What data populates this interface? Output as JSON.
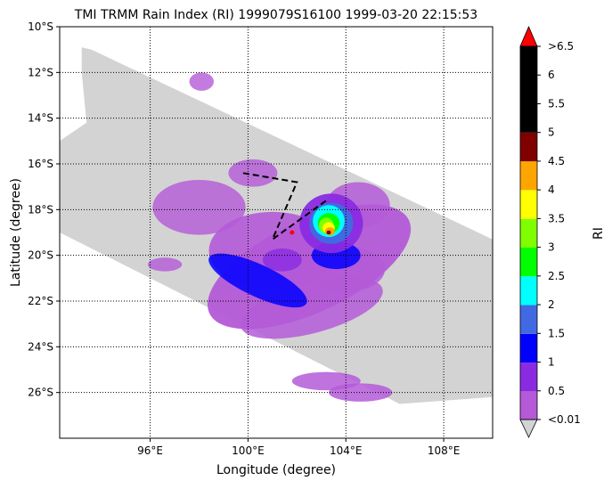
{
  "chart_data": {
    "type": "heatmap",
    "title": "TMI TRMM Rain Index (RI) 1999079S16100 1999-03-20 22:15:53",
    "xlabel": "Longitude (degree)",
    "ylabel": "Latitude (degree)",
    "xlim": [
      92.3,
      110.0
    ],
    "ylim": [
      -28.0,
      -10.0
    ],
    "x_ticks": [
      {
        "value": 96,
        "label": "96°E"
      },
      {
        "value": 100,
        "label": "100°E"
      },
      {
        "value": 104,
        "label": "104°E"
      },
      {
        "value": 108,
        "label": "108°E"
      }
    ],
    "y_ticks": [
      {
        "value": -10,
        "label": "10°S"
      },
      {
        "value": -12,
        "label": "12°S"
      },
      {
        "value": -14,
        "label": "14°S"
      },
      {
        "value": -16,
        "label": "16°S"
      },
      {
        "value": -18,
        "label": "18°S"
      },
      {
        "value": -20,
        "label": "20°S"
      },
      {
        "value": -22,
        "label": "22°S"
      },
      {
        "value": -24,
        "label": "24°S"
      },
      {
        "value": -26,
        "label": "26°S"
      }
    ],
    "grid": true,
    "swath_color": "#d3d3d3",
    "colorbar": {
      "label": "RI",
      "tick_labels": [
        ">6.5",
        "6",
        "5.5",
        "5",
        "4.5",
        "4",
        "3.5",
        "3",
        "2.5",
        "2",
        "1.5",
        "1",
        "0.5",
        "<0.01"
      ],
      "bins": [
        {
          "lo": 0.01,
          "hi": 0.5,
          "color": "#b45ad8"
        },
        {
          "lo": 0.5,
          "hi": 1.0,
          "color": "#8a2be2"
        },
        {
          "lo": 1.0,
          "hi": 1.5,
          "color": "#0000ff"
        },
        {
          "lo": 1.5,
          "hi": 2.0,
          "color": "#4169e1"
        },
        {
          "lo": 2.0,
          "hi": 2.5,
          "color": "#00ffff"
        },
        {
          "lo": 2.5,
          "hi": 3.0,
          "color": "#00ff00"
        },
        {
          "lo": 3.0,
          "hi": 3.5,
          "color": "#7fff00"
        },
        {
          "lo": 3.5,
          "hi": 4.0,
          "color": "#ffff00"
        },
        {
          "lo": 4.0,
          "hi": 4.5,
          "color": "#ffa500"
        },
        {
          "lo": 4.5,
          "hi": 5.0,
          "color": "#800000"
        },
        {
          "lo": 5.0,
          "hi": 6.5,
          "color": "#000000"
        }
      ],
      "over_color": "#ff0000",
      "under_color": "#d3d3d3"
    },
    "track": [
      {
        "lon": 99.8,
        "lat": -16.4
      },
      {
        "lon": 102.0,
        "lat": -16.8
      },
      {
        "lon": 101.0,
        "lat": -19.3
      },
      {
        "lon": 103.2,
        "lat": -17.6
      }
    ],
    "center": {
      "lon": 101.8,
      "lat": -19.0
    }
  }
}
